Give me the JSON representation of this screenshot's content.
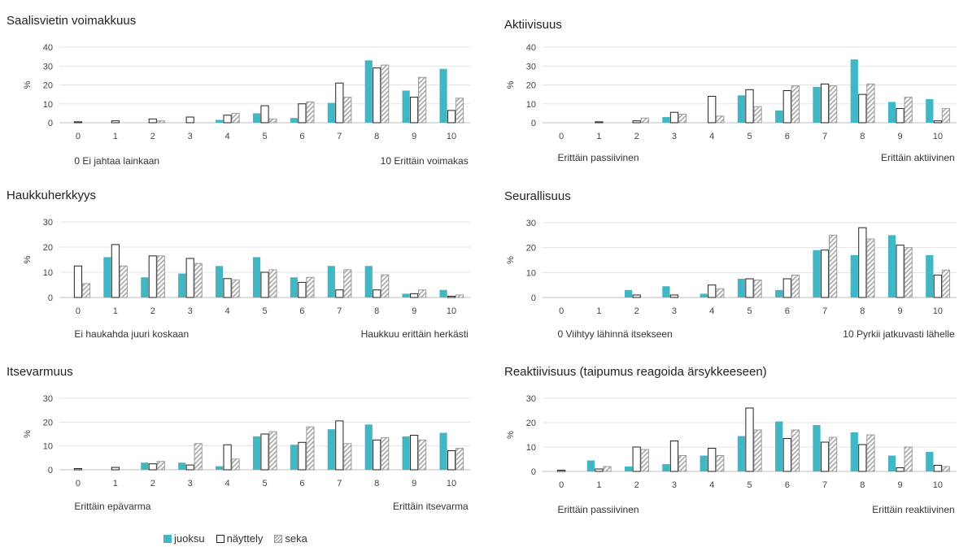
{
  "legend": {
    "run": "juoksu",
    "show": "näyttely",
    "mixed": "seka"
  },
  "colors": {
    "juoksu": "#41b6c4",
    "nayttely": "#ffffff",
    "seka": "#a6a6a6"
  },
  "chart_data": [
    {
      "type": "bar",
      "title": "Saalisvietin voimakkuus",
      "ylabel": "%",
      "ylim": [
        0,
        40
      ],
      "yticks": [
        0,
        10,
        20,
        30,
        40
      ],
      "categories": [
        "0",
        "1",
        "2",
        "3",
        "4",
        "5",
        "6",
        "7",
        "8",
        "9",
        "10"
      ],
      "low_label": "0 Ei jahtaa lainkaan",
      "high_label": "10 Erittäin voimakas",
      "series": [
        {
          "name": "juoksu",
          "values": [
            0,
            0,
            0,
            0,
            1.5,
            5,
            2.5,
            10.5,
            33,
            17,
            28.5
          ]
        },
        {
          "name": "näyttely",
          "values": [
            0.5,
            1,
            2,
            3,
            4,
            9,
            10,
            21,
            29,
            13.5,
            6.5
          ]
        },
        {
          "name": "seka",
          "values": [
            0,
            0,
            1,
            0,
            5,
            2,
            11,
            13.5,
            30.5,
            24,
            13
          ]
        }
      ]
    },
    {
      "type": "bar",
      "title": "Aktiivisuus",
      "ylabel": "%",
      "ylim": [
        0,
        40
      ],
      "yticks": [
        0,
        10,
        20,
        30,
        40
      ],
      "categories": [
        "0",
        "1",
        "2",
        "3",
        "4",
        "5",
        "6",
        "7",
        "8",
        "9",
        "10"
      ],
      "low_label": "Erittäin passiivinen",
      "high_label": "Erittäin aktiivinen",
      "series": [
        {
          "name": "juoksu",
          "values": [
            0,
            0,
            0,
            3,
            0,
            14.5,
            6.5,
            19,
            33.5,
            11,
            12.5
          ]
        },
        {
          "name": "näyttely",
          "values": [
            0,
            0.5,
            1,
            5.5,
            14,
            17.5,
            17,
            20.5,
            15,
            7.5,
            1
          ]
        },
        {
          "name": "seka",
          "values": [
            0,
            0,
            2.5,
            4.5,
            3.5,
            8.5,
            19.5,
            19.5,
            20.5,
            13.5,
            7.5
          ]
        }
      ]
    },
    {
      "type": "bar",
      "title": "Haukkuherkkyys",
      "ylabel": "%",
      "ylim": [
        0,
        30
      ],
      "yticks": [
        0,
        10,
        20,
        30
      ],
      "categories": [
        "0",
        "1",
        "2",
        "3",
        "4",
        "5",
        "6",
        "7",
        "8",
        "9",
        "10"
      ],
      "low_label": "Ei haukahda juuri koskaan",
      "high_label": "Haukkuu erittäin herkästi",
      "series": [
        {
          "name": "juoksu",
          "values": [
            0,
            16,
            8,
            9.5,
            12.5,
            16,
            8,
            12.5,
            12.5,
            1.5,
            3
          ]
        },
        {
          "name": "näyttely",
          "values": [
            12.5,
            21,
            16.5,
            15.5,
            7.5,
            10,
            6,
            3,
            3,
            1.5,
            0.5
          ]
        },
        {
          "name": "seka",
          "values": [
            5.5,
            12.5,
            16.5,
            13.5,
            7,
            11,
            8,
            11,
            9,
            3,
            1
          ]
        }
      ]
    },
    {
      "type": "bar",
      "title": "Seurallisuus",
      "ylabel": "%",
      "ylim": [
        0,
        30
      ],
      "yticks": [
        0,
        10,
        20,
        30
      ],
      "categories": [
        "0",
        "1",
        "2",
        "3",
        "4",
        "5",
        "6",
        "7",
        "8",
        "9",
        "10"
      ],
      "low_label": "0 Viihtyy lähinnä itsekseen",
      "high_label": "10 Pyrkii jatkuvasti lähelle",
      "series": [
        {
          "name": "juoksu",
          "values": [
            0,
            0,
            3,
            4.5,
            1.5,
            7.5,
            3,
            19,
            17,
            25,
            17
          ]
        },
        {
          "name": "näyttely",
          "values": [
            0,
            0,
            1,
            1,
            5,
            7.5,
            7.5,
            19,
            28,
            21,
            9
          ]
        },
        {
          "name": "seka",
          "values": [
            0,
            0,
            0,
            0,
            3.5,
            7,
            9,
            25,
            23.5,
            20,
            11
          ]
        }
      ]
    },
    {
      "type": "bar",
      "title": "Itsevarmuus",
      "ylabel": "%",
      "ylim": [
        0,
        30
      ],
      "yticks": [
        0,
        10,
        20,
        30
      ],
      "categories": [
        "0",
        "1",
        "2",
        "3",
        "4",
        "5",
        "6",
        "7",
        "8",
        "9",
        "10"
      ],
      "low_label": "Erittäin epävarma",
      "high_label": "Erittäin itsevarma",
      "series": [
        {
          "name": "juoksu",
          "values": [
            0,
            0,
            3,
            3,
            1.5,
            14,
            10.5,
            17,
            19,
            14,
            15.5
          ]
        },
        {
          "name": "näyttely",
          "values": [
            0.5,
            1,
            2.5,
            2,
            10.5,
            15,
            11.5,
            20.5,
            12.5,
            14.5,
            8
          ]
        },
        {
          "name": "seka",
          "values": [
            0,
            0,
            3.5,
            11,
            4.5,
            16,
            18,
            11,
            13.5,
            12.5,
            9
          ]
        }
      ]
    },
    {
      "type": "bar",
      "title": "Reaktiivisuus (taipumus reagoida ärsykkeeseen)",
      "ylabel": "%",
      "ylim": [
        0,
        30
      ],
      "yticks": [
        0,
        10,
        20,
        30
      ],
      "categories": [
        "0",
        "1",
        "2",
        "3",
        "4",
        "5",
        "6",
        "7",
        "8",
        "9",
        "10"
      ],
      "low_label": "Erittäin passiivinen",
      "high_label": "Erittäin reaktiivinen",
      "series": [
        {
          "name": "juoksu",
          "values": [
            0,
            4.5,
            2,
            3,
            6.5,
            14.5,
            20.5,
            19,
            16,
            6.5,
            8
          ]
        },
        {
          "name": "näyttely",
          "values": [
            0.5,
            1,
            10,
            12.5,
            9.5,
            26,
            13.5,
            12,
            11,
            1.5,
            2.5
          ]
        },
        {
          "name": "seka",
          "values": [
            0,
            2,
            9,
            6.5,
            6.5,
            17,
            17,
            14,
            15,
            10,
            2
          ]
        }
      ]
    }
  ]
}
